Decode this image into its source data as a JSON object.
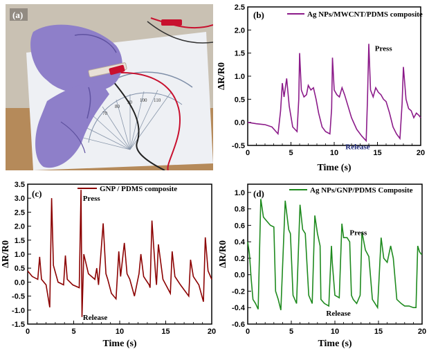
{
  "photo": {
    "label": "(a)",
    "colors": {
      "glove": "#8e7fc9",
      "glove_dark": "#5f52a0",
      "paper": "#eef0f4",
      "wood": "#b58a5a",
      "wall": "#c9c1b3",
      "cable_red": "#c8102e"
    },
    "protractor_ticks": [
      "70",
      "80",
      "90",
      "100",
      "110"
    ],
    "icons": [
      "gloved-hand-icon",
      "sensor-strip-icon",
      "alligator-clip-icon",
      "protractor-icon",
      "cable-icon"
    ]
  },
  "chart_data": [
    {
      "id": "b",
      "type": "line",
      "panel_label": "(b)",
      "xlabel": "Time (s)",
      "ylabel": "ΔR/R0",
      "xlim": [
        0,
        20
      ],
      "ylim": [
        -0.5,
        2.5
      ],
      "xticks": [
        0,
        5,
        10,
        15,
        20
      ],
      "yticks": [
        -0.5,
        0.0,
        0.5,
        1.0,
        1.5,
        2.0,
        2.5
      ],
      "xtick_labels": [
        "0",
        "5",
        "10",
        "15",
        "20"
      ],
      "ytick_labels": [
        "-0.5",
        "0.0",
        "0.5",
        "1.0",
        "1.5",
        "2.0",
        "2.5"
      ],
      "color": "#8b1a89",
      "legend_position": "top-right",
      "annotations": [
        {
          "text": "Press",
          "x": 14.7,
          "y": 1.55
        },
        {
          "text": "Release",
          "x": 11.3,
          "y": -0.58
        }
      ],
      "series": [
        {
          "name": "Ag NPs/MWCNT/PDMS composite",
          "x": [
            0,
            1,
            2,
            2.8,
            3.5,
            3.8,
            4.0,
            4.2,
            4.5,
            4.8,
            5.2,
            5.7,
            5.9,
            6.0,
            6.2,
            6.5,
            6.8,
            7.0,
            7.3,
            7.6,
            7.9,
            8.2,
            8.6,
            9.0,
            9.5,
            9.7,
            9.8,
            10.0,
            10.3,
            10.6,
            10.9,
            11.2,
            11.6,
            12.0,
            12.6,
            13.2,
            13.7,
            13.85,
            14.0,
            14.2,
            14.5,
            14.8,
            15.1,
            15.4,
            15.7,
            16.0,
            16.4,
            16.8,
            17.2,
            17.6,
            17.85,
            18.0,
            18.3,
            18.6,
            18.9,
            19.2,
            19.5,
            19.8,
            20
          ],
          "y": [
            0,
            -0.03,
            -0.05,
            -0.1,
            -0.25,
            0.25,
            0.85,
            0.55,
            0.95,
            0.35,
            -0.1,
            -0.2,
            0.5,
            1.5,
            0.7,
            0.55,
            0.6,
            0.8,
            0.7,
            0.75,
            0.5,
            0.2,
            -0.1,
            -0.2,
            -0.25,
            0.3,
            1.4,
            0.7,
            0.6,
            0.55,
            0.75,
            0.6,
            0.35,
            0.1,
            -0.15,
            -0.3,
            -0.4,
            0.5,
            1.7,
            0.7,
            0.55,
            0.75,
            0.65,
            0.6,
            0.5,
            0.45,
            0.2,
            -0.1,
            -0.25,
            -0.35,
            0.4,
            1.2,
            0.5,
            0.3,
            0.25,
            0.1,
            0.2,
            0.15,
            0.1
          ]
        }
      ]
    },
    {
      "id": "c",
      "type": "line",
      "panel_label": "(c)",
      "xlabel": "Time (s)",
      "ylabel": "ΔR/R0",
      "xlim": [
        0,
        20
      ],
      "ylim": [
        -1.5,
        3.5
      ],
      "xticks": [
        0,
        5,
        10,
        15,
        20
      ],
      "yticks": [
        -1.5,
        -1.0,
        -0.5,
        0.0,
        0.5,
        1.0,
        1.5,
        2.0,
        2.5,
        3.0,
        3.5
      ],
      "xtick_labels": [
        "0",
        "5",
        "10",
        "15",
        "20"
      ],
      "ytick_labels": [
        "-1.5",
        "-1.0",
        "-0.5",
        "0.0",
        "0.5",
        "1.0",
        "1.5",
        "2.0",
        "2.5",
        "3.0",
        "3.5"
      ],
      "color": "#8b0000",
      "legend_position": "top-right",
      "annotations": [
        {
          "text": "Press",
          "x": 6.0,
          "y": 2.9
        },
        {
          "text": "Release",
          "x": 6.0,
          "y": -1.35
        }
      ],
      "series": [
        {
          "name": "GNP / PDMS composite",
          "x": [
            0,
            0.5,
            1.1,
            1.3,
            1.5,
            2.0,
            2.4,
            2.6,
            2.8,
            3.3,
            3.9,
            4.1,
            4.3,
            4.9,
            5.6,
            5.8,
            5.9,
            6.1,
            6.6,
            7.3,
            7.5,
            7.7,
            8.2,
            8.5,
            8.7,
            9.1,
            9.6,
            9.9,
            10.1,
            10.5,
            10.8,
            11.1,
            11.6,
            12.1,
            12.3,
            12.6,
            12.9,
            13.2,
            13.3,
            13.5,
            13.9,
            14.0,
            14.2,
            14.7,
            15.5,
            15.7,
            16.0,
            16.6,
            17.5,
            17.7,
            18.0,
            18.6,
            19.1,
            19.3,
            19.6,
            20
          ],
          "y": [
            0.4,
            0.2,
            0.1,
            0.9,
            0.1,
            -0.1,
            -0.9,
            3.0,
            0.6,
            0,
            -0.1,
            0.95,
            0.1,
            -0.1,
            -0.2,
            3.3,
            -1.25,
            1.0,
            0.3,
            0.1,
            0.5,
            -0.1,
            2.1,
            0.3,
            0.1,
            -0.4,
            -0.6,
            1.1,
            0.2,
            1.4,
            0.3,
            0.1,
            -0.5,
            0.3,
            1.0,
            0.2,
            0.05,
            -0.1,
            -0.2,
            2.2,
            0.25,
            -0.1,
            1.35,
            0.1,
            -0.4,
            1.1,
            0.2,
            -0.1,
            -0.5,
            0.8,
            0.2,
            -0.1,
            -0.7,
            1.6,
            0.4,
            0.1
          ]
        }
      ]
    },
    {
      "id": "d",
      "type": "line",
      "panel_label": "(d)",
      "xlabel": "Time (s)",
      "ylabel": "ΔR/R0",
      "xlim": [
        0,
        20
      ],
      "ylim": [
        -0.6,
        1.1
      ],
      "xticks": [
        0,
        5,
        10,
        15,
        20
      ],
      "yticks": [
        -0.6,
        -0.4,
        -0.2,
        0.0,
        0.2,
        0.4,
        0.6,
        0.8,
        1.0
      ],
      "xtick_labels": [
        "0",
        "5",
        "10",
        "15",
        "20"
      ],
      "ytick_labels": [
        "-0.6",
        "-0.4",
        "-0.2",
        "0.0",
        "0.2",
        "0.4",
        "0.6",
        "0.8",
        "1.0"
      ],
      "color": "#1e8a1e",
      "legend_position": "top-right",
      "annotations": [
        {
          "text": "Press",
          "x": 11.7,
          "y": 0.48
        },
        {
          "text": "Release",
          "x": 9.0,
          "y": -0.5
        }
      ],
      "series": [
        {
          "name": "Ag NPs/GNP/PDMS Composite",
          "x": [
            0,
            0.2,
            0.4,
            0.6,
            0.9,
            1.2,
            1.5,
            1.8,
            2.2,
            2.6,
            3.0,
            3.2,
            3.5,
            3.8,
            4.3,
            4.7,
            4.9,
            5.2,
            5.6,
            6.0,
            6.3,
            6.6,
            7.0,
            7.4,
            7.7,
            8.0,
            8.3,
            8.4,
            8.8,
            9.3,
            9.6,
            9.7,
            10.0,
            10.5,
            10.8,
            11.0,
            11.4,
            11.7,
            11.9,
            12.1,
            12.5,
            12.9,
            13.1,
            13.5,
            13.9,
            14.3,
            14.6,
            14.9,
            15.3,
            15.6,
            16.0,
            16.4,
            16.7,
            17.1,
            17.6,
            18.0,
            18.5,
            19.0,
            19.3,
            19.5,
            19.7,
            19.9,
            20
          ],
          "y": [
            0.4,
            0.25,
            -0.05,
            -0.3,
            -0.35,
            -0.42,
            0.92,
            0.7,
            0.65,
            0.6,
            0.58,
            -0.2,
            -0.3,
            -0.43,
            0.9,
            0.55,
            0.5,
            -0.25,
            -0.35,
            0.85,
            0.55,
            0.5,
            -0.25,
            -0.35,
            0.72,
            0.5,
            0.35,
            -0.3,
            -0.35,
            -0.38,
            0.35,
            0.15,
            -0.25,
            -0.28,
            0.62,
            0.45,
            0.45,
            0.4,
            -0.25,
            -0.3,
            -0.35,
            -0.25,
            0.52,
            0.3,
            0.22,
            -0.3,
            -0.35,
            -0.4,
            0.45,
            0.2,
            0.15,
            0.35,
            0.2,
            -0.3,
            -0.35,
            -0.38,
            -0.38,
            -0.4,
            -0.4,
            0.35,
            0.28,
            0.25,
            0.25
          ]
        }
      ]
    }
  ]
}
